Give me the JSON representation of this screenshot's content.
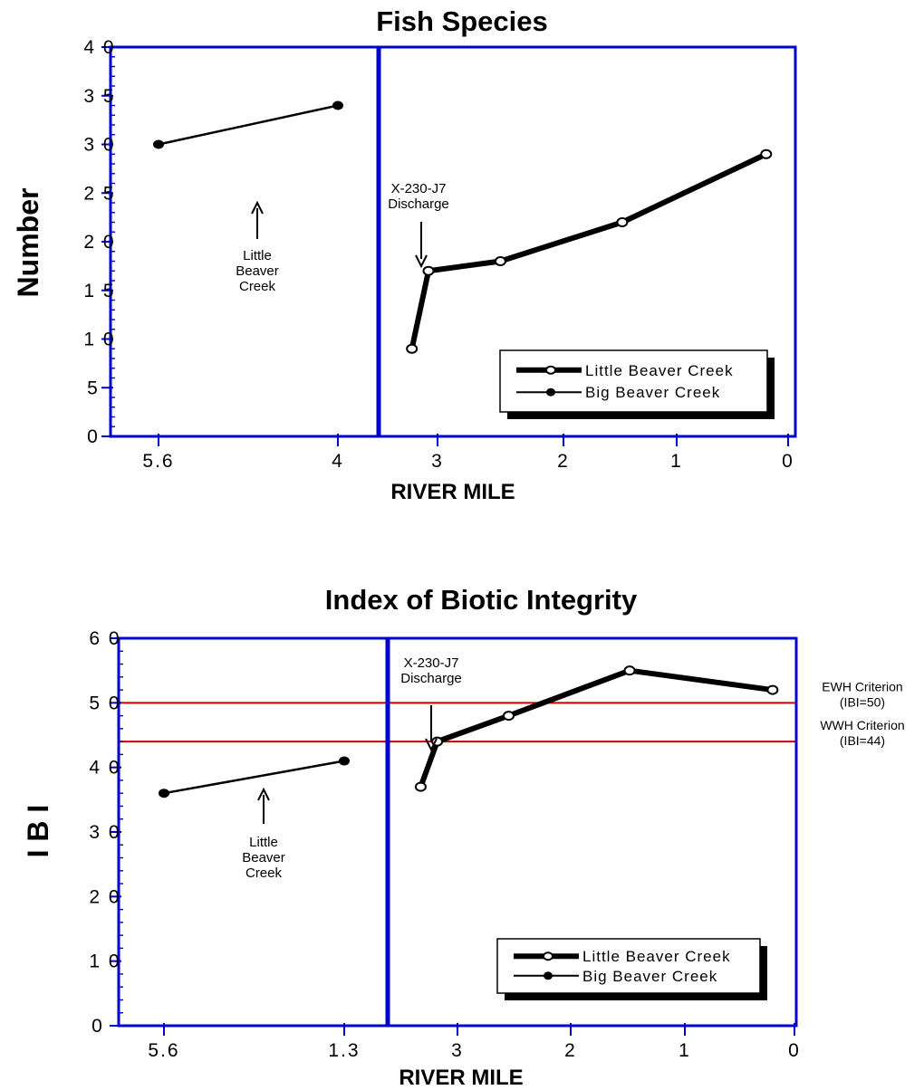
{
  "colors": {
    "axis": "#0000cc",
    "criterion": "#cc0000",
    "series": "#000000",
    "background": "#ffffff"
  },
  "chart_data": [
    {
      "type": "line",
      "title": "Fish Species",
      "xlabel": "RIVER MILE",
      "ylabel": "Number",
      "ylim": [
        0,
        40
      ],
      "ytick_labels": [
        "0",
        "5",
        "1 0",
        "1 5",
        "2 0",
        "2 5",
        "3 0",
        "3 5",
        "4 0"
      ],
      "xtick_labels": [
        "5.6",
        "4",
        "3",
        "2",
        "1",
        "0"
      ],
      "legend": "bottom-right",
      "annotations": {
        "discharge": [
          "X-230-J7",
          "Discharge"
        ],
        "creek": [
          "Little",
          "Beaver",
          "Creek"
        ]
      },
      "series": [
        {
          "name": "Little Beaver Creek",
          "x": [
            3.3,
            3.15,
            2.5,
            1.4,
            0.1
          ],
          "y": [
            9,
            17,
            18,
            22,
            29
          ]
        },
        {
          "name": "Big Beaver Creek",
          "x": [
            "5.6",
            "4"
          ],
          "y": [
            30,
            34
          ]
        }
      ]
    },
    {
      "type": "line",
      "title": "Index of Biotic Integrity",
      "xlabel": "RIVER MILE",
      "ylabel": "I B I",
      "ylim": [
        0,
        60
      ],
      "ytick_labels": [
        "0",
        "1 0",
        "2 0",
        "3 0",
        "4 0",
        "5 0",
        "6 0"
      ],
      "xtick_labels": [
        "5.6",
        "1.3",
        "3",
        "2",
        "1",
        "0"
      ],
      "legend": "bottom-right",
      "annotations": {
        "discharge": [
          "X-230-J7",
          "Discharge"
        ],
        "creek": [
          "Little",
          "Beaver",
          "Creek"
        ]
      },
      "criteria": [
        {
          "value": 50,
          "label": [
            "EWH Criterion",
            "(IBI=50)"
          ]
        },
        {
          "value": 44,
          "label": [
            "WWH Criterion",
            "(IBI=44)"
          ]
        }
      ],
      "series": [
        {
          "name": "Little Beaver Creek",
          "x": [
            3.3,
            3.15,
            2.5,
            1.4,
            0.1
          ],
          "y": [
            37,
            44,
            48,
            55,
            52
          ]
        },
        {
          "name": "Big Beaver Creek",
          "x": [
            "5.6",
            "1.3"
          ],
          "y": [
            36,
            41
          ]
        }
      ]
    }
  ]
}
